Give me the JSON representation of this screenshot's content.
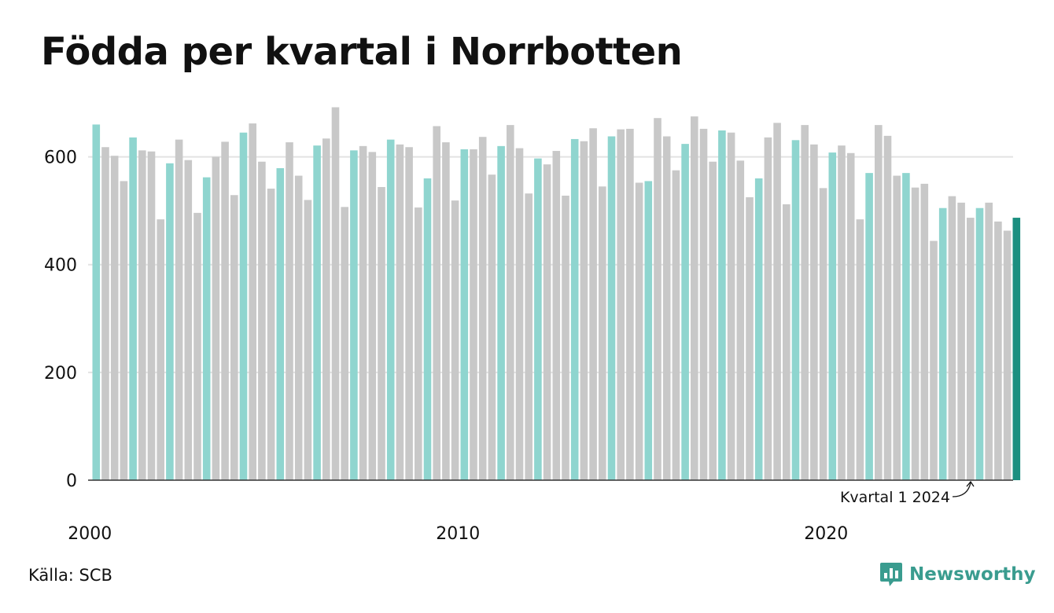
{
  "title": "Födda per kvartal i Norrbotten",
  "source": "Källa: SCB",
  "brand": {
    "name": "Newsworthy",
    "icon": "newsworthy-logo-icon"
  },
  "colors": {
    "q1": "#8fd5cf",
    "other": "#c8c8c8",
    "highlight": "#1b8f80",
    "grid": "#e3e3e3",
    "axis": "#333333",
    "brand": "#3a9c8f"
  },
  "chart_data": {
    "type": "bar",
    "title": "Födda per kvartal i Norrbotten",
    "xlabel": "",
    "ylabel": "",
    "ylim": [
      0,
      700
    ],
    "yticks": [
      0,
      200,
      400,
      600
    ],
    "xticks": [
      "2000",
      "2010",
      "2020"
    ],
    "grid": true,
    "start": "2000 Q1",
    "end": "2024 Q1",
    "annotation": "Kvartal 1 2024",
    "values": [
      660,
      618,
      602,
      555,
      636,
      612,
      610,
      484,
      588,
      632,
      594,
      496,
      562,
      600,
      628,
      529,
      645,
      662,
      591,
      541,
      579,
      627,
      565,
      520,
      621,
      634,
      692,
      507,
      612,
      620,
      609,
      544,
      632,
      623,
      618,
      506,
      560,
      657,
      627,
      519,
      614,
      614,
      637,
      567,
      620,
      659,
      616,
      532,
      597,
      586,
      611,
      528,
      633,
      629,
      653,
      545,
      638,
      651,
      652,
      552,
      555,
      672,
      638,
      575,
      624,
      675,
      652,
      591,
      649,
      645,
      593,
      525,
      560,
      636,
      663,
      512,
      631,
      659,
      623,
      542,
      608,
      621,
      607,
      484,
      570,
      659,
      639,
      565,
      570,
      543,
      550,
      444,
      505,
      527,
      515,
      487,
      505,
      515,
      480,
      463,
      487
    ]
  }
}
